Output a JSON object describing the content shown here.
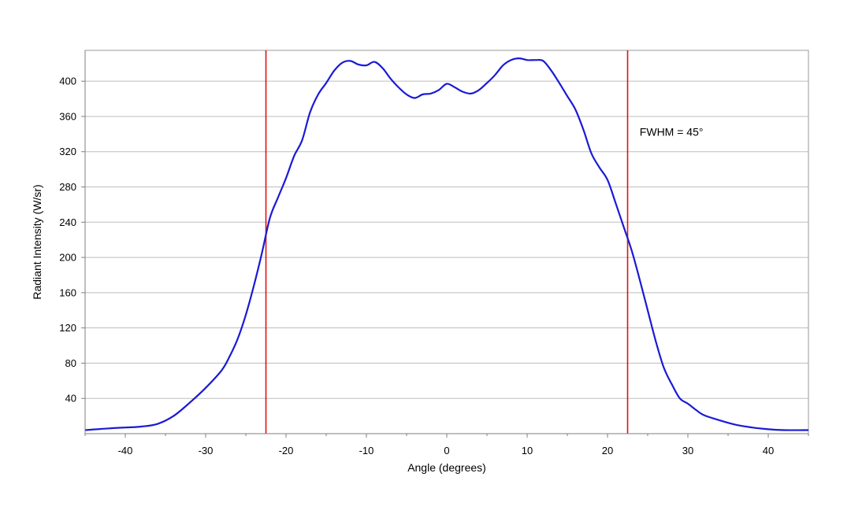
{
  "chart_data": {
    "type": "line",
    "title": "",
    "xlabel": "Angle (degrees)",
    "ylabel": "Radiant Intensity (W/sr)",
    "xlim": [
      -45,
      45
    ],
    "ylim": [
      0,
      435
    ],
    "xticks": [
      -40,
      -30,
      -20,
      -10,
      0,
      10,
      20,
      30,
      40
    ],
    "xtick_labels": [
      "-40",
      "-30",
      "-20",
      "-10",
      "0",
      "10",
      "20",
      "30",
      "40"
    ],
    "yticks": [
      40,
      80,
      120,
      160,
      200,
      240,
      280,
      320,
      360,
      400
    ],
    "ytick_labels": [
      "40",
      "80",
      "120",
      "160",
      "200",
      "240",
      "280",
      "320",
      "360",
      "400"
    ],
    "grid": "horizontal",
    "series": [
      {
        "color": "#1a1ad6",
        "x": [
          -45,
          -42,
          -40,
          -38,
          -36,
          -34,
          -32,
          -30,
          -28,
          -27,
          -26,
          -25,
          -24,
          -23,
          -22,
          -21,
          -20,
          -19,
          -18,
          -17,
          -16,
          -15,
          -14,
          -13,
          -12,
          -11,
          -10,
          -9,
          -8,
          -7,
          -6,
          -5,
          -4,
          -3,
          -2,
          -1,
          0,
          1,
          2,
          3,
          4,
          5,
          6,
          7,
          8,
          9,
          10,
          11,
          12,
          13,
          14,
          15,
          16,
          17,
          18,
          19,
          20,
          21,
          22,
          23,
          24,
          25,
          26,
          27,
          28,
          29,
          30,
          31,
          32,
          34,
          36,
          38,
          40,
          42,
          45
        ],
        "y": [
          4,
          6,
          7,
          8,
          11,
          20,
          35,
          52,
          72,
          88,
          108,
          135,
          168,
          205,
          245,
          268,
          290,
          315,
          333,
          365,
          385,
          398,
          412,
          421,
          423,
          419,
          418,
          422,
          415,
          403,
          393,
          385,
          381,
          385,
          386,
          390,
          397,
          393,
          388,
          386,
          390,
          398,
          407,
          418,
          424,
          426,
          424,
          424,
          423,
          412,
          398,
          383,
          368,
          345,
          318,
          302,
          288,
          262,
          235,
          208,
          175,
          140,
          105,
          75,
          56,
          40,
          34,
          27,
          21,
          15,
          10,
          7,
          5,
          4,
          4
        ]
      }
    ],
    "vlines": [
      {
        "x": -22.5,
        "color": "#e01010"
      },
      {
        "x": 22.5,
        "color": "#e01010"
      }
    ],
    "annotations": [
      {
        "text": "FWHM = 45°",
        "x": 24,
        "y": 338
      }
    ]
  }
}
